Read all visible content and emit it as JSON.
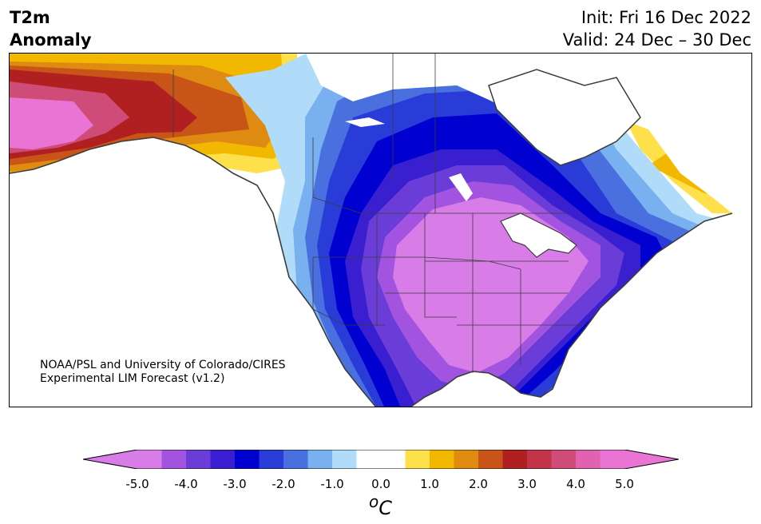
{
  "header": {
    "title_line1": "T2m",
    "title_line2": "Anomaly",
    "init_label": "Init: Fri 16 Dec 2022",
    "valid_label": "Valid: 24 Dec – 30 Dec"
  },
  "map": {
    "credit_line1": "NOAA/PSL and University of Colorado/CIRES",
    "credit_line2": "Experimental LIM Forecast (v1.2)",
    "land_edge_color": "#3c3c3c",
    "water_color": "#ffffff"
  },
  "colorbar": {
    "unit_label": "oC",
    "unit_base": "C",
    "unit_superscript": "o",
    "extend": "both",
    "ticks": [
      "-5.0",
      "-4.0",
      "-3.0",
      "-2.0",
      "-1.0",
      "0.0",
      "1.0",
      "2.0",
      "3.0",
      "4.0",
      "5.0"
    ],
    "tick_values": [
      -5,
      -4,
      -3,
      -2,
      -1,
      0,
      1,
      2,
      3,
      4,
      5
    ],
    "range": [
      -5.5,
      5.5
    ],
    "levels": [
      {
        "from": -5.5,
        "to": -5.0,
        "color": "#d87ce8"
      },
      {
        "from": -5.0,
        "to": -4.5,
        "color": "#d87ce8"
      },
      {
        "from": -4.5,
        "to": -4.0,
        "color": "#a254e0"
      },
      {
        "from": -4.0,
        "to": -3.5,
        "color": "#6a3cd8"
      },
      {
        "from": -3.5,
        "to": -3.0,
        "color": "#3a1fd0"
      },
      {
        "from": -3.0,
        "to": -2.5,
        "color": "#0000d0"
      },
      {
        "from": -2.5,
        "to": -2.0,
        "color": "#2a3cd8"
      },
      {
        "from": -2.0,
        "to": -1.5,
        "color": "#4a70e0"
      },
      {
        "from": -1.5,
        "to": -1.0,
        "color": "#78b0f0"
      },
      {
        "from": -1.0,
        "to": -0.5,
        "color": "#b0dcfa"
      },
      {
        "from": -0.5,
        "to": 0.5,
        "color": "#ffffff"
      },
      {
        "from": 0.5,
        "to": 1.0,
        "color": "#fde04a"
      },
      {
        "from": 1.0,
        "to": 1.5,
        "color": "#f2b800"
      },
      {
        "from": 1.5,
        "to": 2.0,
        "color": "#df8a10"
      },
      {
        "from": 2.0,
        "to": 2.5,
        "color": "#c85418"
      },
      {
        "from": 2.5,
        "to": 3.0,
        "color": "#b02020"
      },
      {
        "from": 3.0,
        "to": 3.5,
        "color": "#c43448"
      },
      {
        "from": 3.5,
        "to": 4.0,
        "color": "#d04c78"
      },
      {
        "from": 4.0,
        "to": 4.5,
        "color": "#e062b0"
      },
      {
        "from": 4.5,
        "to": 5.0,
        "color": "#ea74d4"
      },
      {
        "from": 5.0,
        "to": 5.5,
        "color": "#ea74d4"
      }
    ]
  }
}
